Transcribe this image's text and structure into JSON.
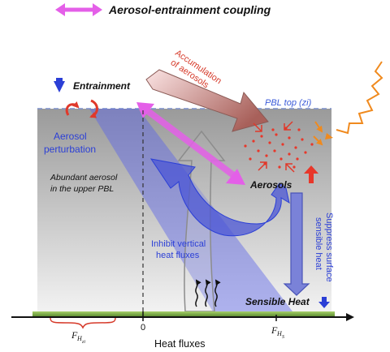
{
  "legend": {
    "label": "Aerosol-entrainment coupling",
    "arrow_color": "#e45fe8"
  },
  "labels": {
    "entrainment": "Entrainment",
    "accumulation_line1": "Accumulation",
    "accumulation_line2": "of aerosols",
    "pbl_top": "PBL top (zi)",
    "aerosol_perturbation_line1": "Aerosol",
    "aerosol_perturbation_line2": "perturbation",
    "abundant_line1": "Abundant aerosol",
    "abundant_line2": "in the upper PBL",
    "aerosols": "Aerosols",
    "inhibit_line1": "Inhibit vertical",
    "inhibit_line2": "heat fluxes",
    "suppress_line1": "Suppress surface",
    "suppress_line2": "sensible heat",
    "sensible_heat": "Sensible Heat"
  },
  "axis": {
    "x_label": "Heat fluxes",
    "zero_label": "0",
    "f_hzi_main": "F",
    "f_hzi_sub": "H",
    "f_hzi_subsub": "zi",
    "f_hs_main": "F",
    "f_hs_sub": "H",
    "f_hs_subsub": "S"
  },
  "colors": {
    "entrainment_arrow": "#2b3fd6",
    "curl_arrows": "#e0392b",
    "accumulation_text": "#d63a2a",
    "pbl_top_text": "#3a5ad8",
    "perturbation_text": "#2b3fd6",
    "inhibit_text": "#2b3fd6",
    "suppress_text": "#2b3fd6",
    "heat_up_arrow": "#e8372a",
    "sensible_heat_arrow": "#2b3fd6",
    "sun_wave": "#f08a1e",
    "ground": "#7fb24a",
    "brace": "#d63a2a"
  }
}
